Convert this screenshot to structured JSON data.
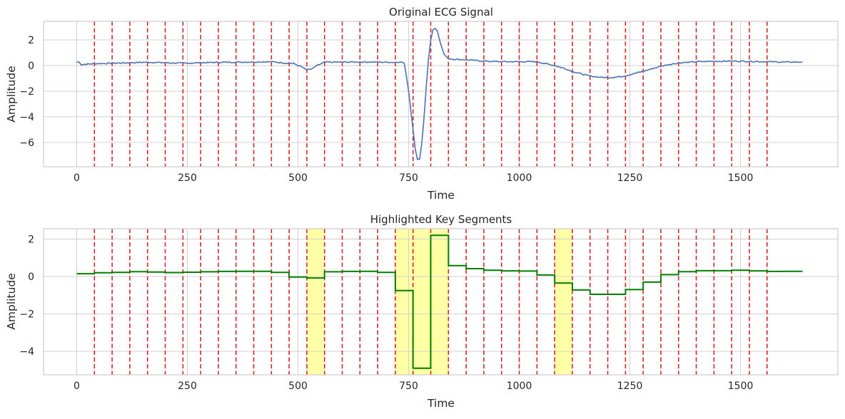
{
  "colors": {
    "ecg_line": "#4c72b0",
    "segment_line": "#008000",
    "boundary_line": "#d62728",
    "highlight_fill": "#ffff80",
    "grid": "#d0d0d0",
    "frame": "#cccccc",
    "text": "#262626"
  },
  "chart_data": [
    {
      "type": "line",
      "title": "Original ECG Signal",
      "xlabel": "Time",
      "ylabel": "Amplitude",
      "xlim": [
        -75,
        1720
      ],
      "ylim": [
        -7.9,
        3.45
      ],
      "xticks": [
        0,
        250,
        500,
        750,
        1000,
        1250,
        1500
      ],
      "yticks": [
        -6,
        -4,
        -2,
        0,
        2
      ],
      "ytick_labels": [
        "−6",
        "−4",
        "−2",
        "0",
        "2"
      ],
      "grid": true,
      "boundary_lines": [
        40,
        80,
        120,
        160,
        200,
        240,
        280,
        320,
        360,
        400,
        440,
        480,
        520,
        560,
        600,
        640,
        680,
        720,
        760,
        800,
        840,
        880,
        920,
        960,
        1000,
        1040,
        1080,
        1120,
        1160,
        1200,
        1240,
        1280,
        1320,
        1360,
        1400,
        1440,
        1480,
        1520,
        1560
      ],
      "series": [
        {
          "x": [
            0,
            5,
            10,
            40,
            80,
            120,
            160,
            200,
            240,
            280,
            320,
            360,
            400,
            440,
            470,
            490,
            500,
            510,
            520,
            530,
            540,
            560,
            600,
            640,
            680,
            720,
            730,
            740,
            745,
            750,
            755,
            760,
            765,
            770,
            775,
            780,
            785,
            790,
            795,
            800,
            805,
            810,
            815,
            820,
            825,
            830,
            835,
            840,
            850,
            880,
            920,
            960,
            1000,
            1040,
            1060,
            1080,
            1100,
            1120,
            1140,
            1160,
            1180,
            1200,
            1220,
            1240,
            1260,
            1280,
            1300,
            1320,
            1340,
            1360,
            1400,
            1440,
            1480,
            1520,
            1560,
            1600,
            1640
          ],
          "values": [
            0.25,
            0.28,
            0.08,
            0.15,
            0.18,
            0.22,
            0.26,
            0.22,
            0.18,
            0.22,
            0.25,
            0.27,
            0.28,
            0.3,
            0.2,
            0.17,
            0.0,
            -0.12,
            -0.35,
            -0.28,
            -0.05,
            0.26,
            0.27,
            0.28,
            0.27,
            0.25,
            0.3,
            0.2,
            -0.8,
            -2.0,
            -3.5,
            -5.0,
            -6.5,
            -7.35,
            -7.3,
            -6.0,
            -4.0,
            -1.6,
            0.5,
            2.0,
            2.8,
            2.9,
            2.7,
            2.0,
            1.4,
            0.9,
            0.7,
            0.55,
            0.5,
            0.45,
            0.35,
            0.3,
            0.3,
            0.3,
            0.15,
            0.0,
            -0.2,
            -0.45,
            -0.65,
            -0.82,
            -0.9,
            -0.95,
            -0.9,
            -0.8,
            -0.62,
            -0.45,
            -0.25,
            -0.05,
            0.1,
            0.2,
            0.3,
            0.33,
            0.35,
            0.33,
            0.3,
            0.27,
            0.28
          ]
        }
      ]
    },
    {
      "type": "line",
      "title": "Highlighted Key Segments",
      "xlabel": "Time",
      "ylabel": "Amplitude",
      "xlim": [
        -75,
        1720
      ],
      "ylim": [
        -5.25,
        2.55
      ],
      "xticks": [
        0,
        250,
        500,
        750,
        1000,
        1250,
        1500
      ],
      "yticks": [
        -4,
        -2,
        0,
        2
      ],
      "ytick_labels": [
        "−4",
        "−2",
        "0",
        "2"
      ],
      "grid": true,
      "boundary_lines": [
        40,
        80,
        120,
        160,
        200,
        240,
        280,
        320,
        360,
        400,
        440,
        480,
        520,
        560,
        600,
        640,
        680,
        720,
        760,
        800,
        840,
        880,
        920,
        960,
        1000,
        1040,
        1080,
        1120,
        1160,
        1200,
        1240,
        1280,
        1320,
        1360,
        1400,
        1440,
        1480,
        1520,
        1560
      ],
      "highlighted_segments": [
        [
          520,
          560
        ],
        [
          720,
          840
        ],
        [
          1080,
          1120
        ]
      ],
      "series": [
        {
          "segment_starts": [
            0,
            40,
            80,
            120,
            160,
            200,
            240,
            280,
            320,
            360,
            400,
            440,
            480,
            520,
            560,
            600,
            640,
            680,
            720,
            760,
            800,
            840,
            880,
            920,
            960,
            1000,
            1040,
            1080,
            1120,
            1160,
            1200,
            1240,
            1280,
            1320,
            1360,
            1400,
            1440,
            1480,
            1520,
            1560,
            1600
          ],
          "segment_end": 1640,
          "values": [
            0.15,
            0.2,
            0.22,
            0.26,
            0.24,
            0.21,
            0.23,
            0.25,
            0.27,
            0.28,
            0.28,
            0.22,
            -0.03,
            -0.08,
            0.25,
            0.27,
            0.28,
            0.22,
            -0.75,
            -4.9,
            2.2,
            0.58,
            0.42,
            0.33,
            0.3,
            0.29,
            0.08,
            -0.35,
            -0.72,
            -0.95,
            -0.95,
            -0.7,
            -0.3,
            0.1,
            0.26,
            0.31,
            0.31,
            0.33,
            0.3,
            0.27,
            0.28
          ]
        }
      ]
    }
  ]
}
